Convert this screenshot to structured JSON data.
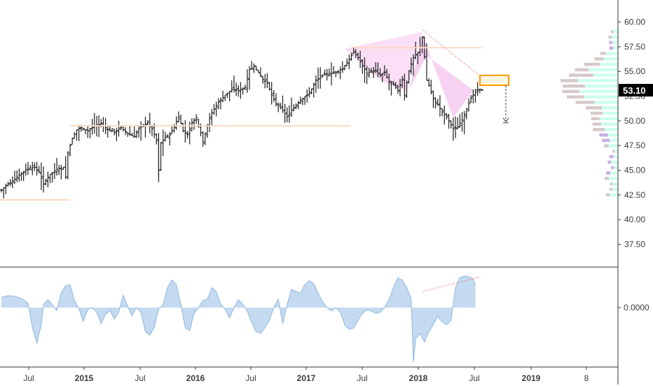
{
  "chart_data": [
    {
      "type": "ohlc",
      "ylim": [
        35.0,
        62.0
      ],
      "y_ticks": [
        "37.50",
        "40.00",
        "42.50",
        "45.00",
        "47.50",
        "50.00",
        "52.50",
        "55.00",
        "57.50",
        "60.00"
      ],
      "last_price_label": "53.10",
      "x_ticks": [
        {
          "label": "Jul",
          "bold": false
        },
        {
          "label": "2015",
          "bold": true
        },
        {
          "label": "Jul",
          "bold": false
        },
        {
          "label": "2016",
          "bold": true
        },
        {
          "label": "Jul",
          "bold": false
        },
        {
          "label": "2017",
          "bold": true
        },
        {
          "label": "Jul",
          "bold": false
        },
        {
          "label": "2018",
          "bold": true
        },
        {
          "label": "Jul",
          "bold": false
        },
        {
          "label": "2019",
          "bold": true
        },
        {
          "label": "8",
          "bold": false
        }
      ],
      "price_path": [
        [
          0,
          43.0
        ],
        [
          3,
          43.6
        ],
        [
          6,
          44.1
        ],
        [
          9,
          44.7
        ],
        [
          12,
          45.2
        ],
        [
          15,
          45.3
        ],
        [
          17,
          44.8
        ],
        [
          19,
          43.6
        ],
        [
          20,
          44.0
        ],
        [
          22,
          44.6
        ],
        [
          25,
          45.1
        ],
        [
          27,
          45.2
        ],
        [
          28,
          45.3
        ],
        [
          29,
          44.3
        ],
        [
          30,
          46.8
        ],
        [
          32,
          48.2
        ],
        [
          34,
          49.1
        ],
        [
          36,
          49.3
        ],
        [
          39,
          49.0
        ],
        [
          42,
          49.5
        ],
        [
          45,
          49.7
        ],
        [
          48,
          49.1
        ],
        [
          51,
          48.9
        ],
        [
          54,
          49.3
        ],
        [
          57,
          48.7
        ],
        [
          60,
          48.4
        ],
        [
          62,
          49.2
        ],
        [
          64,
          49.6
        ],
        [
          66,
          49.8
        ],
        [
          68,
          49.2
        ],
        [
          70,
          48.0
        ],
        [
          71,
          45.0
        ],
        [
          72,
          47.8
        ],
        [
          74,
          48.3
        ],
        [
          76,
          48.6
        ],
        [
          78,
          49.4
        ],
        [
          80,
          50.4
        ],
        [
          82,
          49.0
        ],
        [
          84,
          48.6
        ],
        [
          86,
          49.8
        ],
        [
          88,
          50.3
        ],
        [
          90,
          48.8
        ],
        [
          91,
          47.9
        ],
        [
          93,
          49.6
        ],
        [
          95,
          50.8
        ],
        [
          98,
          51.9
        ],
        [
          101,
          52.6
        ],
        [
          104,
          53.2
        ],
        [
          107,
          53.1
        ],
        [
          110,
          53.4
        ],
        [
          112,
          55.2
        ],
        [
          114,
          55.5
        ],
        [
          116,
          54.9
        ],
        [
          118,
          54.2
        ],
        [
          120,
          53.8
        ],
        [
          122,
          52.6
        ],
        [
          124,
          51.7
        ],
        [
          127,
          51.1
        ],
        [
          129,
          50.4
        ],
        [
          131,
          51.1
        ],
        [
          133,
          51.6
        ],
        [
          135,
          52.1
        ],
        [
          138,
          52.6
        ],
        [
          140,
          53.2
        ],
        [
          142,
          54.1
        ],
        [
          145,
          54.6
        ],
        [
          148,
          54.8
        ],
        [
          151,
          54.9
        ],
        [
          154,
          55.3
        ],
        [
          157,
          56.2
        ],
        [
          159,
          57.0
        ],
        [
          161,
          56.4
        ],
        [
          163,
          55.6
        ],
        [
          165,
          54.8
        ],
        [
          167,
          55.0
        ],
        [
          169,
          55.0
        ],
        [
          171,
          54.6
        ],
        [
          173,
          54.9
        ],
        [
          175,
          53.9
        ],
        [
          177,
          53.6
        ],
        [
          179,
          53.1
        ],
        [
          181,
          54.2
        ],
        [
          182,
          52.6
        ],
        [
          184,
          55.1
        ],
        [
          186,
          56.4
        ],
        [
          188,
          56.9
        ],
        [
          189,
          57.4
        ],
        [
          190,
          58.5
        ],
        [
          191,
          56.5
        ],
        [
          192,
          54.1
        ],
        [
          193,
          53.6
        ],
        [
          195,
          52.2
        ],
        [
          197,
          51.6
        ],
        [
          199,
          50.9
        ],
        [
          201,
          50.4
        ],
        [
          203,
          49.6
        ],
        [
          204,
          49.2
        ],
        [
          206,
          49.4
        ],
        [
          208,
          50.1
        ],
        [
          210,
          51.2
        ],
        [
          212,
          52.3
        ],
        [
          214,
          52.9
        ],
        [
          216,
          53.2
        ],
        [
          217,
          53.1
        ]
      ],
      "volume_profile_note": "horizontal volume-by-price histogram on right edge"
    },
    {
      "type": "area",
      "y_tick": "0.0000",
      "ylim": [
        -1.0,
        1.0
      ],
      "baseline": 0.0,
      "osc_path": [
        [
          0,
          0.18
        ],
        [
          3,
          0.21
        ],
        [
          6,
          0.2
        ],
        [
          9,
          0.16
        ],
        [
          12,
          0.08
        ],
        [
          14,
          -0.35
        ],
        [
          16,
          -0.62
        ],
        [
          18,
          -0.3
        ],
        [
          19,
          0.05
        ],
        [
          21,
          0.14
        ],
        [
          23,
          0.05
        ],
        [
          25,
          -0.05
        ],
        [
          27,
          0.26
        ],
        [
          29,
          0.38
        ],
        [
          31,
          0.4
        ],
        [
          33,
          0.12
        ],
        [
          35,
          -0.02
        ],
        [
          37,
          -0.24
        ],
        [
          39,
          -0.03
        ],
        [
          41,
          0.0
        ],
        [
          43,
          -0.08
        ],
        [
          45,
          -0.28
        ],
        [
          47,
          -0.12
        ],
        [
          49,
          -0.05
        ],
        [
          51,
          -0.2
        ],
        [
          53,
          -0.08
        ],
        [
          55,
          0.22
        ],
        [
          57,
          0.02
        ],
        [
          59,
          -0.14
        ],
        [
          61,
          0.0
        ],
        [
          63,
          -0.08
        ],
        [
          65,
          -0.42
        ],
        [
          67,
          -0.48
        ],
        [
          69,
          -0.34
        ],
        [
          71,
          -0.02
        ],
        [
          73,
          0.05
        ],
        [
          75,
          0.35
        ],
        [
          77,
          0.48
        ],
        [
          79,
          0.4
        ],
        [
          81,
          0.06
        ],
        [
          83,
          -0.35
        ],
        [
          85,
          -0.4
        ],
        [
          87,
          -0.1
        ],
        [
          89,
          0.0
        ],
        [
          91,
          0.12
        ],
        [
          93,
          0.15
        ],
        [
          95,
          0.35
        ],
        [
          97,
          0.28
        ],
        [
          99,
          0.06
        ],
        [
          101,
          -0.03
        ],
        [
          103,
          -0.18
        ],
        [
          105,
          0.0
        ],
        [
          107,
          0.14
        ],
        [
          109,
          0.06
        ],
        [
          111,
          -0.06
        ],
        [
          113,
          -0.26
        ],
        [
          115,
          -0.42
        ],
        [
          117,
          -0.45
        ],
        [
          119,
          -0.35
        ],
        [
          121,
          -0.22
        ],
        [
          123,
          0.0
        ],
        [
          125,
          0.15
        ],
        [
          127,
          -0.28
        ],
        [
          129,
          0.05
        ],
        [
          131,
          0.32
        ],
        [
          133,
          0.28
        ],
        [
          135,
          0.25
        ],
        [
          137,
          0.4
        ],
        [
          139,
          0.47
        ],
        [
          141,
          0.42
        ],
        [
          143,
          0.25
        ],
        [
          145,
          0.1
        ],
        [
          147,
          0.0
        ],
        [
          149,
          -0.06
        ],
        [
          151,
          0.0
        ],
        [
          153,
          -0.08
        ],
        [
          155,
          -0.3
        ],
        [
          157,
          -0.38
        ],
        [
          159,
          -0.36
        ],
        [
          161,
          -0.22
        ],
        [
          163,
          -0.1
        ],
        [
          165,
          -0.04
        ],
        [
          167,
          -0.06
        ],
        [
          169,
          -0.1
        ],
        [
          171,
          -0.08
        ],
        [
          173,
          0.0
        ],
        [
          175,
          0.14
        ],
        [
          177,
          0.35
        ],
        [
          179,
          0.52
        ],
        [
          181,
          0.48
        ],
        [
          183,
          0.35
        ],
        [
          185,
          0.15
        ],
        [
          186,
          -0.95
        ],
        [
          187,
          -0.55
        ],
        [
          189,
          -0.45
        ],
        [
          191,
          -0.6
        ],
        [
          193,
          -0.42
        ],
        [
          195,
          -0.3
        ],
        [
          197,
          -0.15
        ],
        [
          199,
          -0.25
        ],
        [
          201,
          -0.3
        ],
        [
          203,
          -0.22
        ],
        [
          205,
          0.35
        ],
        [
          207,
          0.52
        ],
        [
          209,
          0.55
        ],
        [
          211,
          0.54
        ],
        [
          213,
          0.5
        ],
        [
          214,
          0.38
        ]
      ]
    }
  ],
  "colors": {
    "bar": "#1e1e1e",
    "harmonic_fill": "#f6c9f0",
    "trend_line": "#ef7f7f",
    "support_line": "#ffd8c0",
    "target_box": "#ff9800",
    "volume_up": "#ccffee",
    "volume_down": "#d7c9c9",
    "volume_highlight": "#c9aee3",
    "osc_fill": "#bcd6ef",
    "osc_line": "#90b8e0",
    "axis": "#555555"
  }
}
